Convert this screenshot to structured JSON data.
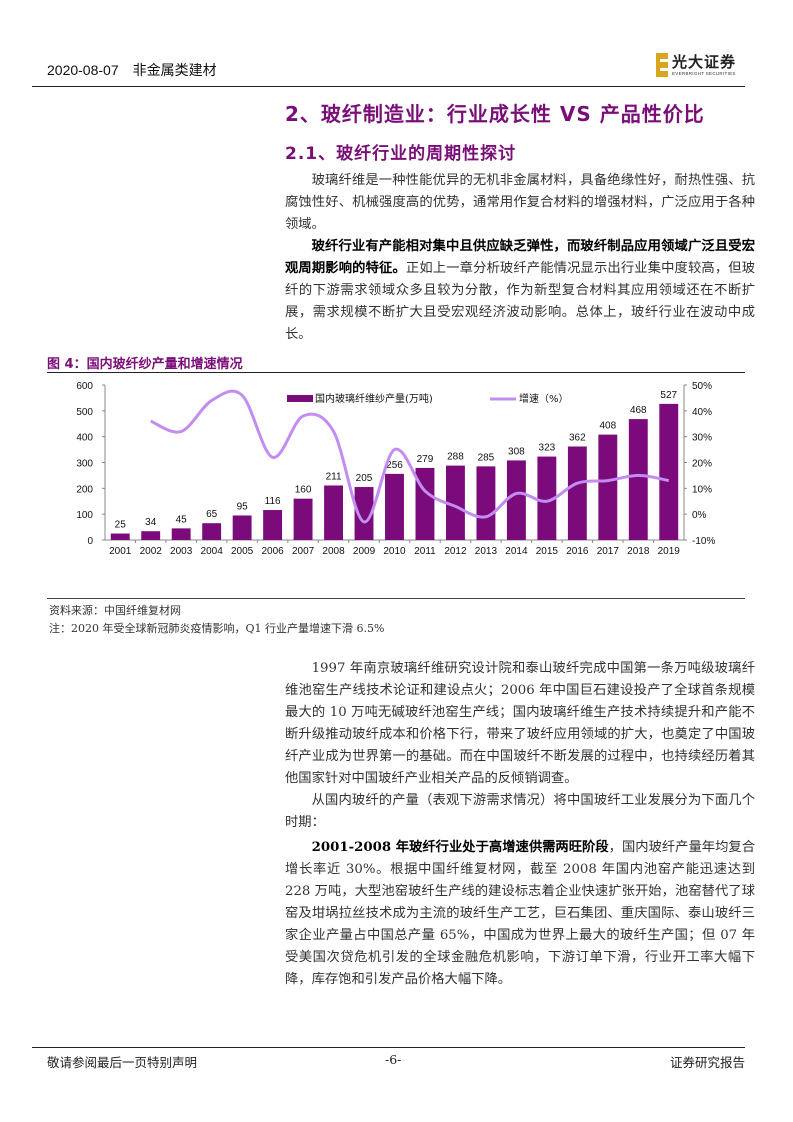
{
  "header": {
    "date": "2020-08-07",
    "category": "非金属类建材",
    "logo_cn": "光大证券",
    "logo_en": "EVERBRIGHT SECURITIES"
  },
  "section": {
    "title": "2、玻纤制造业：行业成长性 VS 产品性价比",
    "subtitle": "2.1、玻纤行业的周期性探讨"
  },
  "paragraphs": {
    "p1": "玻璃纤维是一种性能优异的无机非金属材料，具备绝缘性好，耐热性强、抗腐蚀性好、机械强度高的优势，通常用作复合材料的增强材料，广泛应用于各种领域。",
    "p2_bold": "玻纤行业有产能相对集中且供应缺乏弹性，而玻纤制品应用领域广泛且受宏观周期影响的特征。",
    "p2_rest": "正如上一章分析玻纤产能情况显示出行业集中度较高，但玻纤的下游需求领域众多且较为分散，作为新型复合材料其应用领域还在不断扩展，需求规模不断扩大且受宏观经济波动影响。总体上，玻纤行业在波动中成长。",
    "p3": "1997 年南京玻璃纤维研究设计院和泰山玻纤完成中国第一条万吨级玻璃纤维池窑生产线技术论证和建设点火；2006 年中国巨石建设投产了全球首条规模最大的 10 万吨无碱玻纤池窑生产线；国内玻璃纤维生产技术持续提升和产能不断升级推动玻纤成本和价格下行，带来了玻纤应用领域的扩大，也奠定了中国玻纤产业成为世界第一的基础。而在中国玻纤不断发展的过程中，也持续经历着其他国家针对中国玻纤产业相关产品的反倾销调查。",
    "p4": "从国内玻纤的产量（表观下游需求情况）将中国玻纤工业发展分为下面几个时期：",
    "p5_bold": "2001-2008 年玻纤行业处于高增速供需两旺阶段",
    "p5_rest": "，国内玻纤产量年均复合增长率近 30%。根据中国纤维复材网，截至 2008 年国内池窑产能迅速达到 228 万吨，大型池窑玻纤生产线的建设标志着企业快速扩张开始，池窑替代了球窑及坩埚拉丝技术成为主流的玻纤生产工艺，巨石集团、重庆国际、泰山玻纤三家企业产量占中国总产量 65%，中国成为世界上最大的玻纤生产国；但 07 年受美国次贷危机引发的全球金融危机影响，下游订单下滑，行业开工率大幅下降，库存饱和引发产品价格大幅下降。"
  },
  "figure": {
    "title": "图 4：国内玻纤纱产量和增速情况",
    "source": "资料来源：中国纤维复材网",
    "note": "注：2020 年受全球新冠肺炎疫情影响，Q1 行业产量增速下滑 6.5%"
  },
  "chart_data": {
    "type": "bar",
    "title": "国内玻纤纱产量和增速情况",
    "categories": [
      "2001",
      "2002",
      "2003",
      "2004",
      "2005",
      "2006",
      "2007",
      "2008",
      "2009",
      "2010",
      "2011",
      "2012",
      "2013",
      "2014",
      "2015",
      "2016",
      "2017",
      "2018",
      "2019"
    ],
    "series": [
      {
        "name": "国内玻璃纤维纱产量(万吨)",
        "type": "bar",
        "axis": "left",
        "color": "#7b0a7a",
        "values": [
          25,
          34,
          45,
          65,
          95,
          116,
          160,
          211,
          205,
          256,
          279,
          288,
          285,
          308,
          323,
          362,
          408,
          468,
          527
        ]
      },
      {
        "name": "增速（%）",
        "type": "line",
        "axis": "right",
        "color": "#c38cf0",
        "values": [
          null,
          36,
          32,
          44,
          46,
          22,
          38,
          32,
          -3,
          25,
          9,
          3,
          -1,
          8,
          5,
          12,
          13,
          15,
          13
        ]
      }
    ],
    "y_left": {
      "min": 0,
      "max": 600,
      "ticks": [
        0,
        100,
        200,
        300,
        400,
        500,
        600
      ]
    },
    "y_right": {
      "min": -10,
      "max": 50,
      "ticks": [
        "-10%",
        "0%",
        "10%",
        "20%",
        "30%",
        "40%",
        "50%"
      ]
    },
    "legend_position": "top",
    "grid": false,
    "data_labels": true
  },
  "footer": {
    "left": "敬请参阅最后一页特别声明",
    "center": "-6-",
    "right": "证券研究报告"
  }
}
